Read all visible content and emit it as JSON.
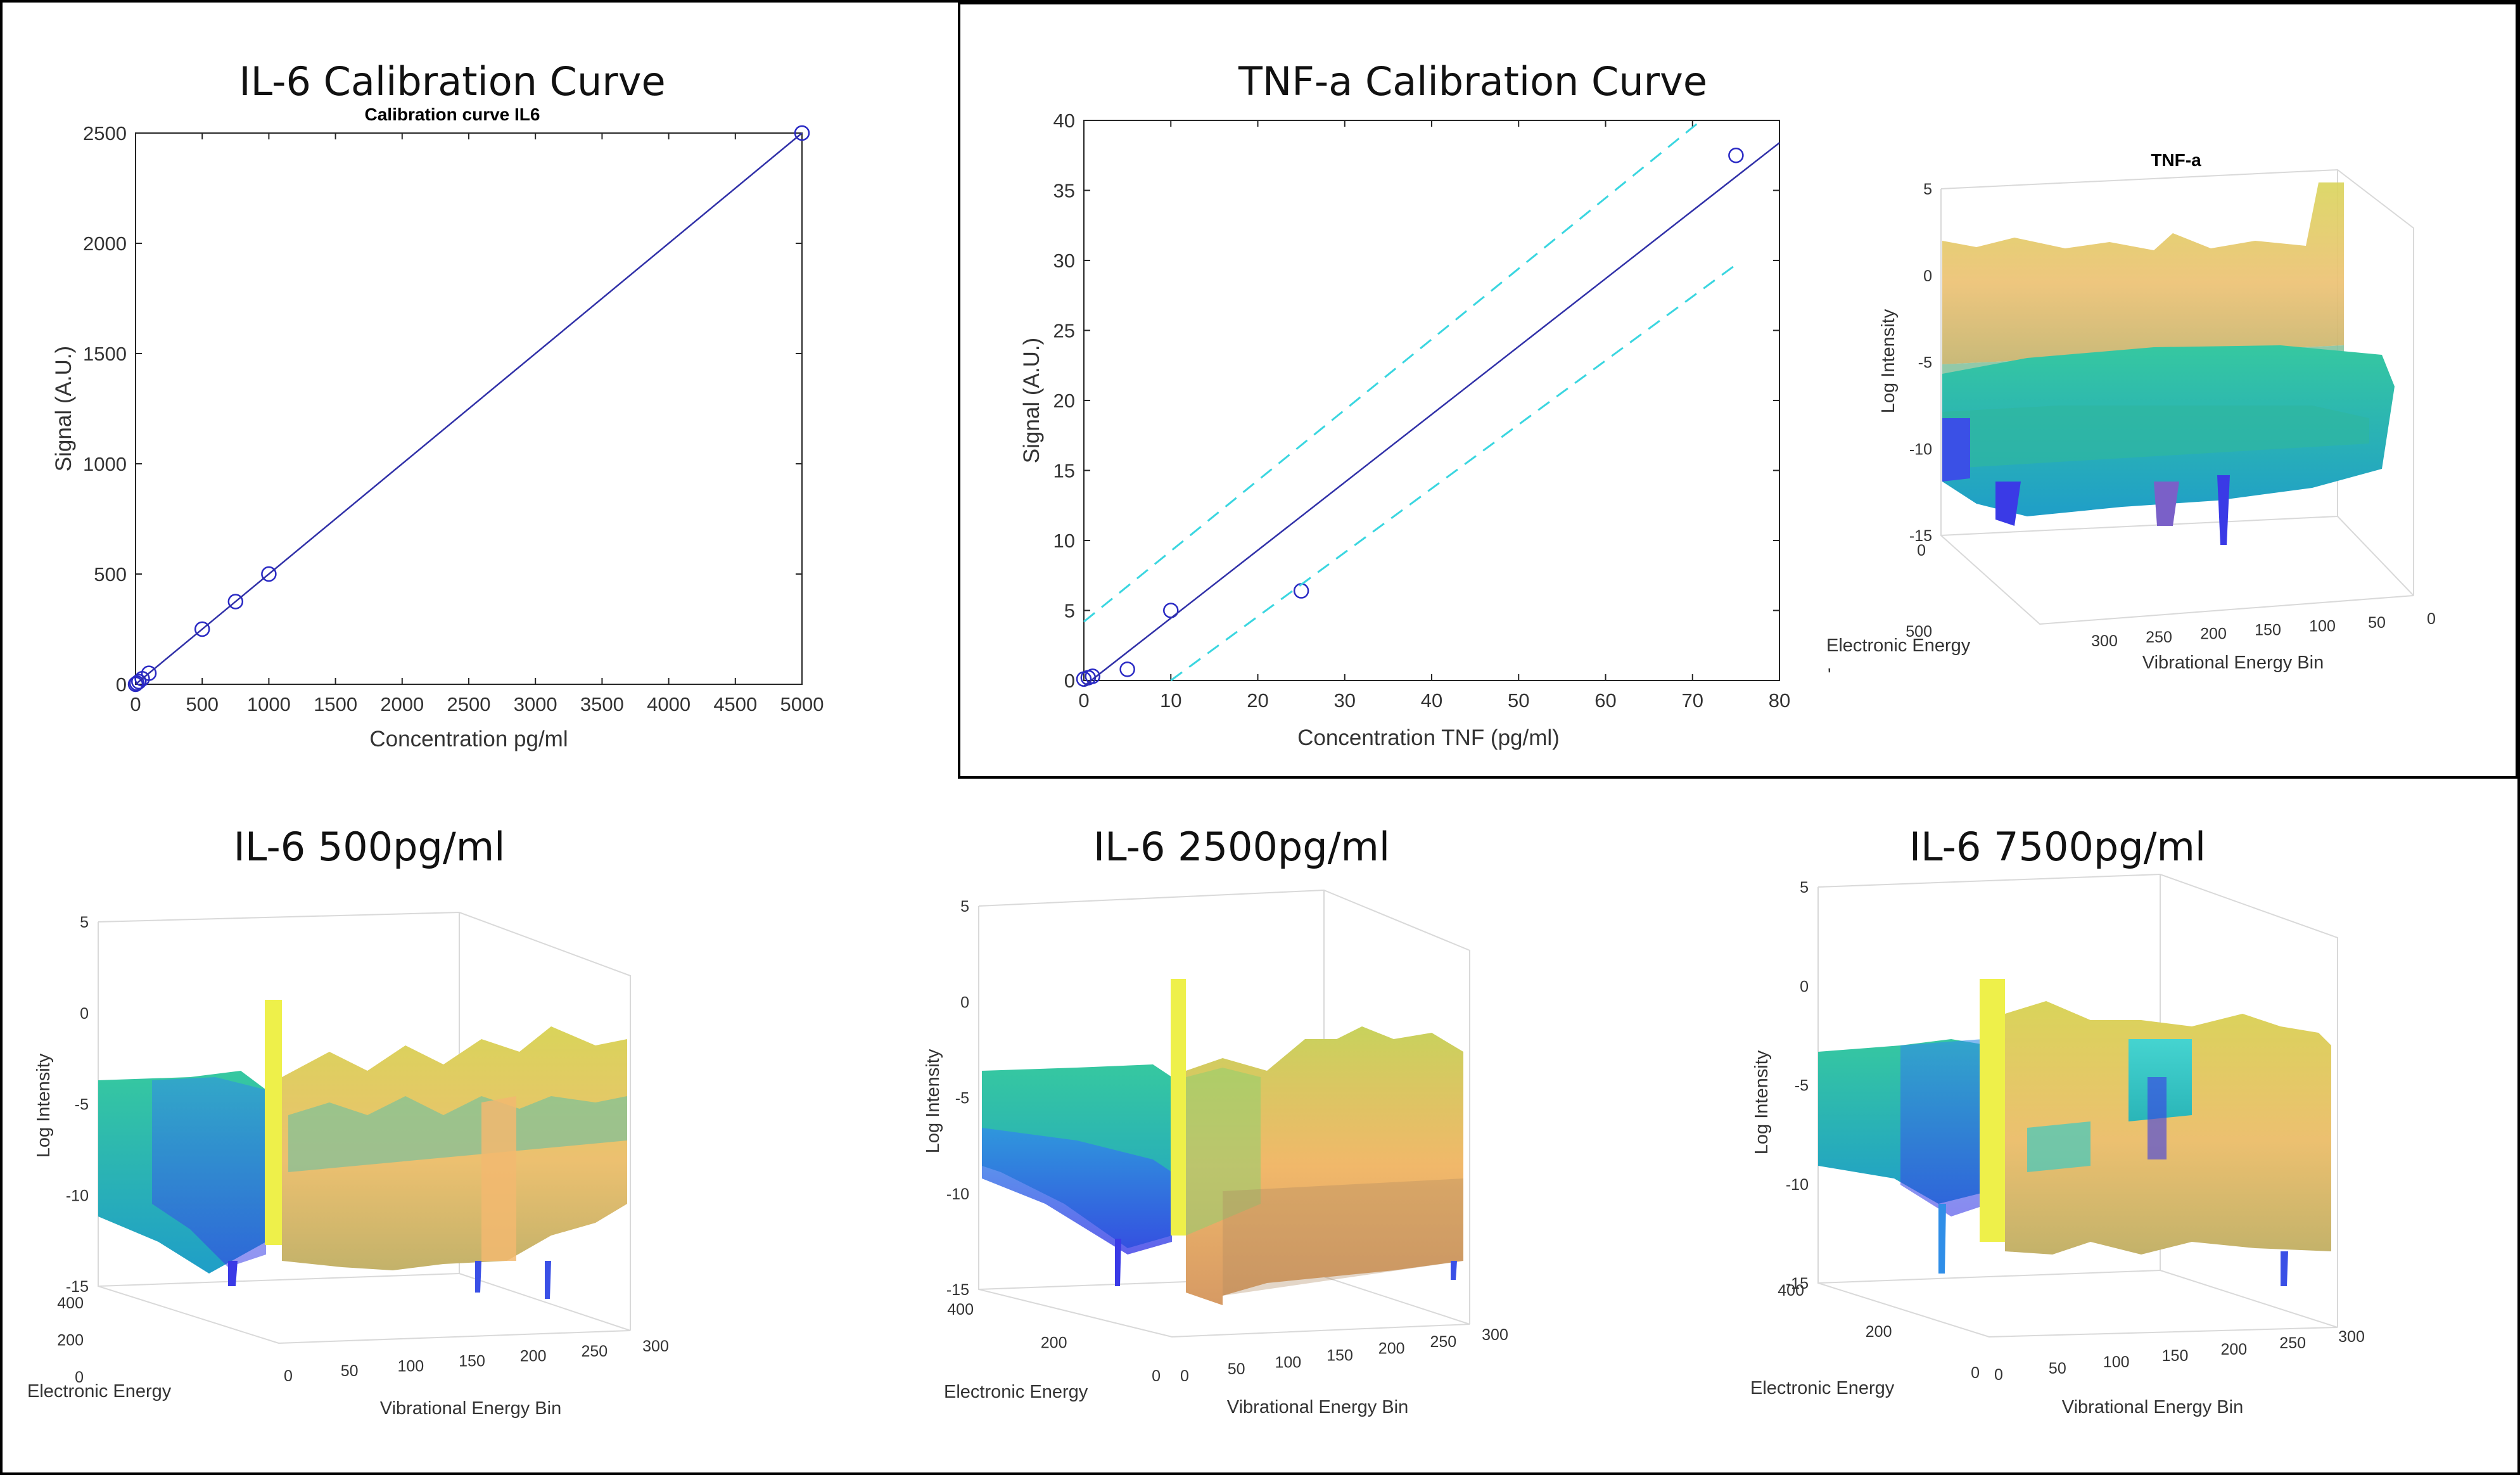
{
  "colors": {
    "frame": "#000000",
    "axes": "#262626",
    "fit_line": "#3030a8",
    "marker": "#2929c4",
    "prediction_bound": "#3ad6e0",
    "surface_palette": [
      "#3a3ae6",
      "#2f8ee8",
      "#23b7a6",
      "#3cc58a",
      "#9fd15a",
      "#d6d26a",
      "#f2c56c",
      "#ecd86a",
      "#f3f03c"
    ]
  },
  "chart_data": [
    {
      "id": "il6-calibration",
      "type": "scatter",
      "panel_title": "IL-6 Calibration Curve",
      "subtitle": "Calibration curve IL6",
      "xlabel": "Concentration pg/ml",
      "ylabel": "Signal (A.U.)",
      "xlim": [
        0,
        5000
      ],
      "ylim": [
        0,
        2500
      ],
      "xticks": [
        0,
        500,
        1000,
        1500,
        2000,
        2500,
        3000,
        3500,
        4000,
        4500,
        5000
      ],
      "yticks": [
        0,
        500,
        1000,
        1500,
        2000,
        2500
      ],
      "grid": false,
      "series": [
        {
          "kind": "points",
          "x": [
            0,
            10,
            25,
            50,
            100,
            500,
            750,
            1000,
            5000
          ],
          "y": [
            0,
            5,
            12,
            25,
            50,
            250,
            375,
            500,
            2500
          ]
        },
        {
          "kind": "fit",
          "x": [
            0,
            5000
          ],
          "y": [
            0,
            2500
          ]
        }
      ]
    },
    {
      "id": "tnf-calibration",
      "type": "scatter",
      "panel_title": "TNF-a Calibration Curve",
      "xlabel": "Concentration TNF (pg/ml)",
      "ylabel": "Signal (A.U.)",
      "xlim": [
        0,
        80
      ],
      "ylim": [
        0,
        40
      ],
      "xticks": [
        0,
        10,
        20,
        30,
        40,
        50,
        60,
        70,
        80
      ],
      "yticks": [
        0,
        5,
        10,
        15,
        20,
        25,
        30,
        35,
        40
      ],
      "grid": false,
      "series": [
        {
          "kind": "points",
          "x": [
            0,
            0.5,
            1,
            5,
            10,
            25,
            75
          ],
          "y": [
            0.1,
            0.2,
            0.3,
            0.8,
            5.0,
            6.4,
            37.5
          ]
        },
        {
          "kind": "fit",
          "x": [
            0,
            80
          ],
          "y": [
            -0.4,
            38.4
          ]
        },
        {
          "kind": "bound",
          "x": [
            0,
            71
          ],
          "y": [
            4.2,
            40
          ]
        },
        {
          "kind": "bound",
          "x": [
            10,
            75
          ],
          "y": [
            0,
            29.7
          ]
        }
      ]
    },
    {
      "id": "tnf-surface",
      "type": "surface3d",
      "subtitle": "TNF-a",
      "zlabel": "Log Intensity",
      "xlabel": "Vibrational Energy Bin",
      "ylabel": "Electronic Energy",
      "zticks": [
        5,
        0,
        -5,
        -10,
        -15
      ],
      "xticks": [
        300,
        250,
        200,
        150,
        100,
        50,
        0
      ],
      "yticks": [
        0,
        500
      ],
      "annotation": "'",
      "grid": true
    },
    {
      "id": "il6-500",
      "type": "surface3d",
      "panel_title": "IL-6 500pg/ml",
      "zlabel": "Log Intensity",
      "xlabel": "Vibrational Energy Bin",
      "ylabel": "Electronic Energy",
      "zticks": [
        5,
        0,
        -5,
        -10,
        -15
      ],
      "xticks": [
        0,
        50,
        100,
        150,
        200,
        250,
        300
      ],
      "yticks": [
        400,
        200,
        0
      ],
      "grid": true
    },
    {
      "id": "il6-2500",
      "type": "surface3d",
      "panel_title": "IL-6 2500pg/ml",
      "zlabel": "Log Intensity",
      "xlabel": "Vibrational Energy Bin",
      "ylabel": "Electronic Energy",
      "zticks": [
        5,
        0,
        -5,
        -10,
        -15
      ],
      "xticks": [
        0,
        50,
        100,
        150,
        200,
        250,
        300
      ],
      "yticks": [
        400,
        200,
        0
      ],
      "grid": true
    },
    {
      "id": "il6-7500",
      "type": "surface3d",
      "panel_title": "IL-6 7500pg/ml",
      "zlabel": "Log Intensity",
      "xlabel": "Vibrational Energy Bin",
      "ylabel": "Electronic Energy",
      "zticks": [
        5,
        0,
        -5,
        -10,
        -15
      ],
      "xticks": [
        0,
        50,
        100,
        150,
        200,
        250,
        300
      ],
      "yticks": [
        400,
        200,
        0
      ],
      "grid": true
    }
  ]
}
